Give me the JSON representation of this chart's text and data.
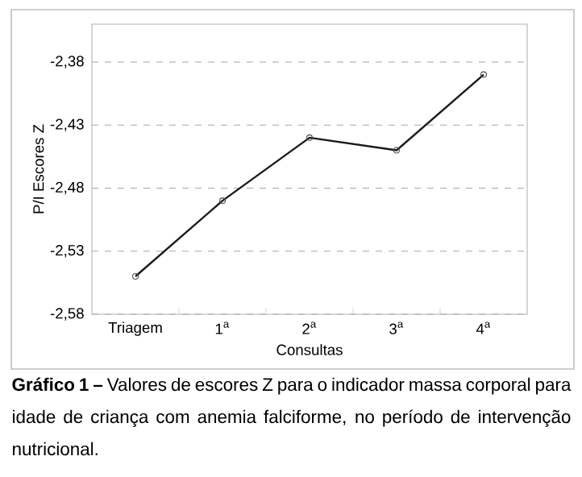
{
  "chart_data": {
    "type": "line",
    "categories": [
      "Triagem",
      "1$^{a}$",
      "2$^{a}$",
      "3$^{a}$",
      "4$^{a}$"
    ],
    "values": [
      -2.55,
      -2.49,
      -2.44,
      -2.45,
      -2.39
    ],
    "color": "#1a1a1a",
    "xlabel": "Consultas",
    "ylabel": "P/I Escores Z",
    "ylim": [
      -2.58,
      -2.35
    ],
    "yticks": [
      {
        "value": -2.58,
        "label": "-2,58"
      },
      {
        "value": -2.53,
        "label": "-2,53"
      },
      {
        "value": -2.48,
        "label": "-2,48"
      },
      {
        "value": -2.43,
        "label": "-2,43"
      },
      {
        "value": -2.38,
        "label": "-2,38"
      }
    ],
    "grid": "y",
    "marker": "circle",
    "line_style": "solid",
    "annotations": [
      "**Gráfico 1 –** Valores de escores Z para o indicador massa corporal para idade de criança com anemia falciforme, no período de intervenção nutricional."
    ]
  }
}
